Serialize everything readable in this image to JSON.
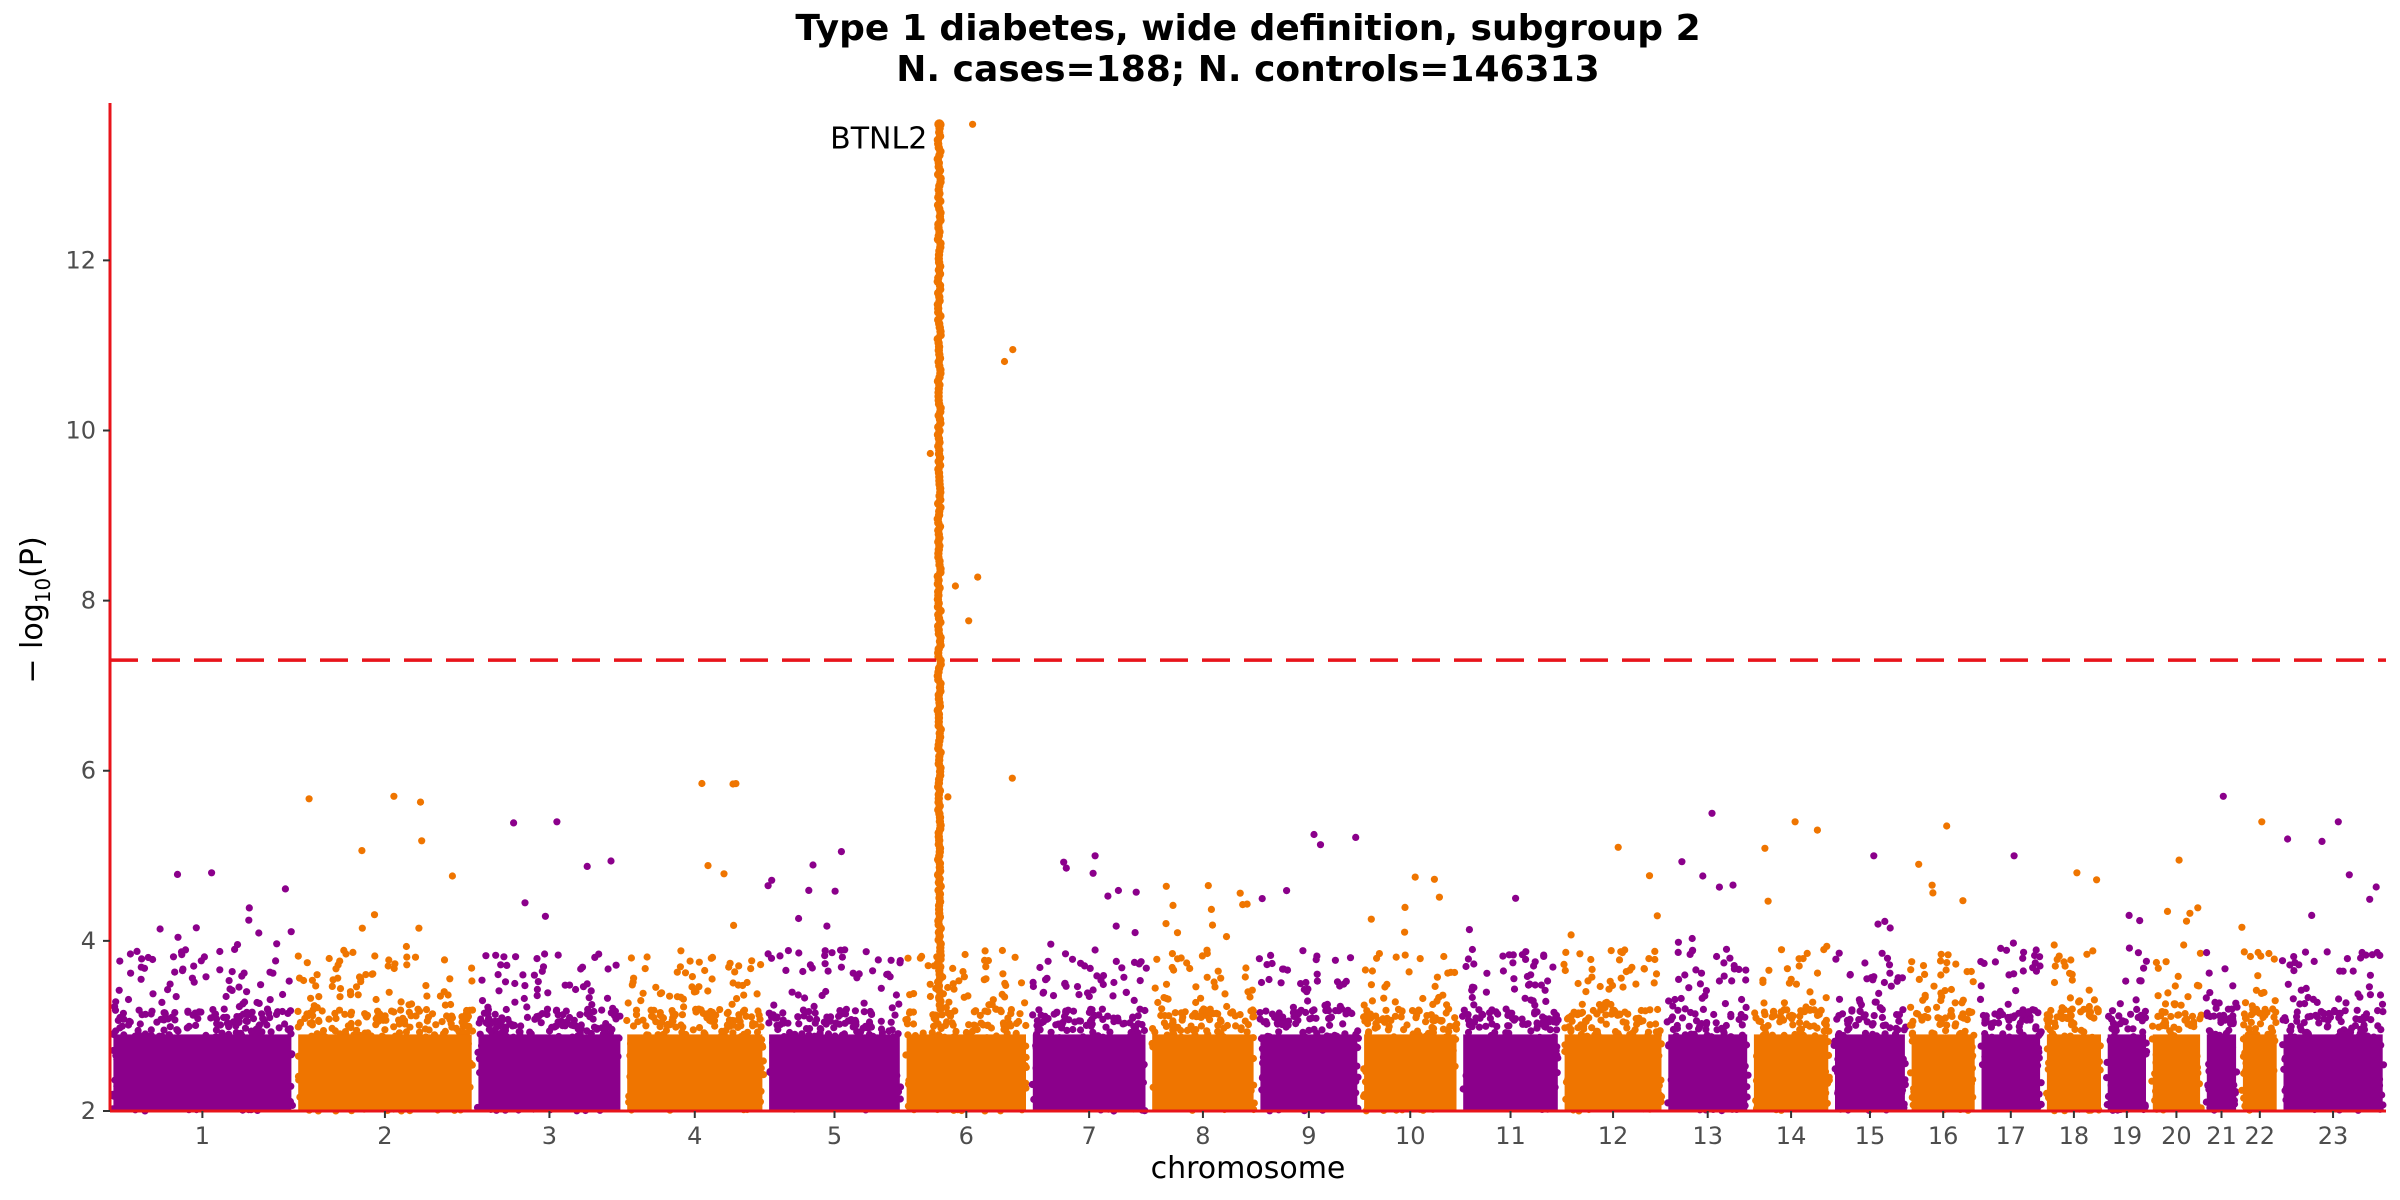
{
  "chart_data": {
    "type": "scatter",
    "subtype": "manhattan",
    "title_line1": "Type 1 diabetes, wide definition, subgroup 2",
    "title_line2": "N. cases=188; N. controls=146313",
    "xlabel": "chromosome",
    "ylabel": "−log10(P)",
    "ylim": [
      2,
      13.85
    ],
    "y_ticks": [
      2,
      4,
      6,
      8,
      10,
      12
    ],
    "significance_threshold": 7.3,
    "colors": {
      "odd": "#8b008b",
      "even": "#ef7500",
      "threshold": "#e8141b",
      "axis": "#e8141b"
    },
    "chromosomes": [
      {
        "label": "1",
        "start": 0,
        "end": 8.2,
        "peak": 4.8
      },
      {
        "label": "2",
        "start": 8.2,
        "end": 16.2,
        "peak": 5.7
      },
      {
        "label": "3",
        "start": 16.2,
        "end": 22.8,
        "peak": 5.4
      },
      {
        "label": "4",
        "start": 22.8,
        "end": 29.1,
        "peak": 5.85
      },
      {
        "label": "5",
        "start": 29.1,
        "end": 35.2,
        "peak": 5.05
      },
      {
        "label": "6",
        "start": 35.2,
        "end": 40.8,
        "peak": 13.6
      },
      {
        "label": "7",
        "start": 40.8,
        "end": 46.1,
        "peak": 5.0
      },
      {
        "label": "8",
        "start": 46.1,
        "end": 50.9,
        "peak": 4.65
      },
      {
        "label": "9",
        "start": 50.9,
        "end": 55.5,
        "peak": 5.25
      },
      {
        "label": "10",
        "start": 55.5,
        "end": 59.9,
        "peak": 4.75
      },
      {
        "label": "11",
        "start": 59.9,
        "end": 64.4,
        "peak": 4.5
      },
      {
        "label": "12",
        "start": 64.4,
        "end": 69.0,
        "peak": 5.1
      },
      {
        "label": "13",
        "start": 69.0,
        "end": 72.8,
        "peak": 5.5
      },
      {
        "label": "14",
        "start": 72.8,
        "end": 76.4,
        "peak": 5.4
      },
      {
        "label": "15",
        "start": 76.4,
        "end": 79.8,
        "peak": 5.0
      },
      {
        "label": "16",
        "start": 79.8,
        "end": 82.9,
        "peak": 5.35
      },
      {
        "label": "17",
        "start": 82.9,
        "end": 85.8,
        "peak": 5.0
      },
      {
        "label": "18",
        "start": 85.8,
        "end": 88.5,
        "peak": 4.8
      },
      {
        "label": "19",
        "start": 88.5,
        "end": 90.5,
        "peak": 4.3
      },
      {
        "label": "20",
        "start": 90.5,
        "end": 92.9,
        "peak": 4.95
      },
      {
        "label": "21",
        "start": 92.9,
        "end": 94.5,
        "peak": 5.7
      },
      {
        "label": "22",
        "start": 94.5,
        "end": 96.3,
        "peak": 5.4
      },
      {
        "label": "23",
        "start": 96.3,
        "end": 101.0,
        "peak": 5.4
      }
    ],
    "annotations": [
      {
        "text": "BTNL2",
        "chromosome": "6",
        "x": 36.8,
        "y": 13.6
      }
    ]
  }
}
